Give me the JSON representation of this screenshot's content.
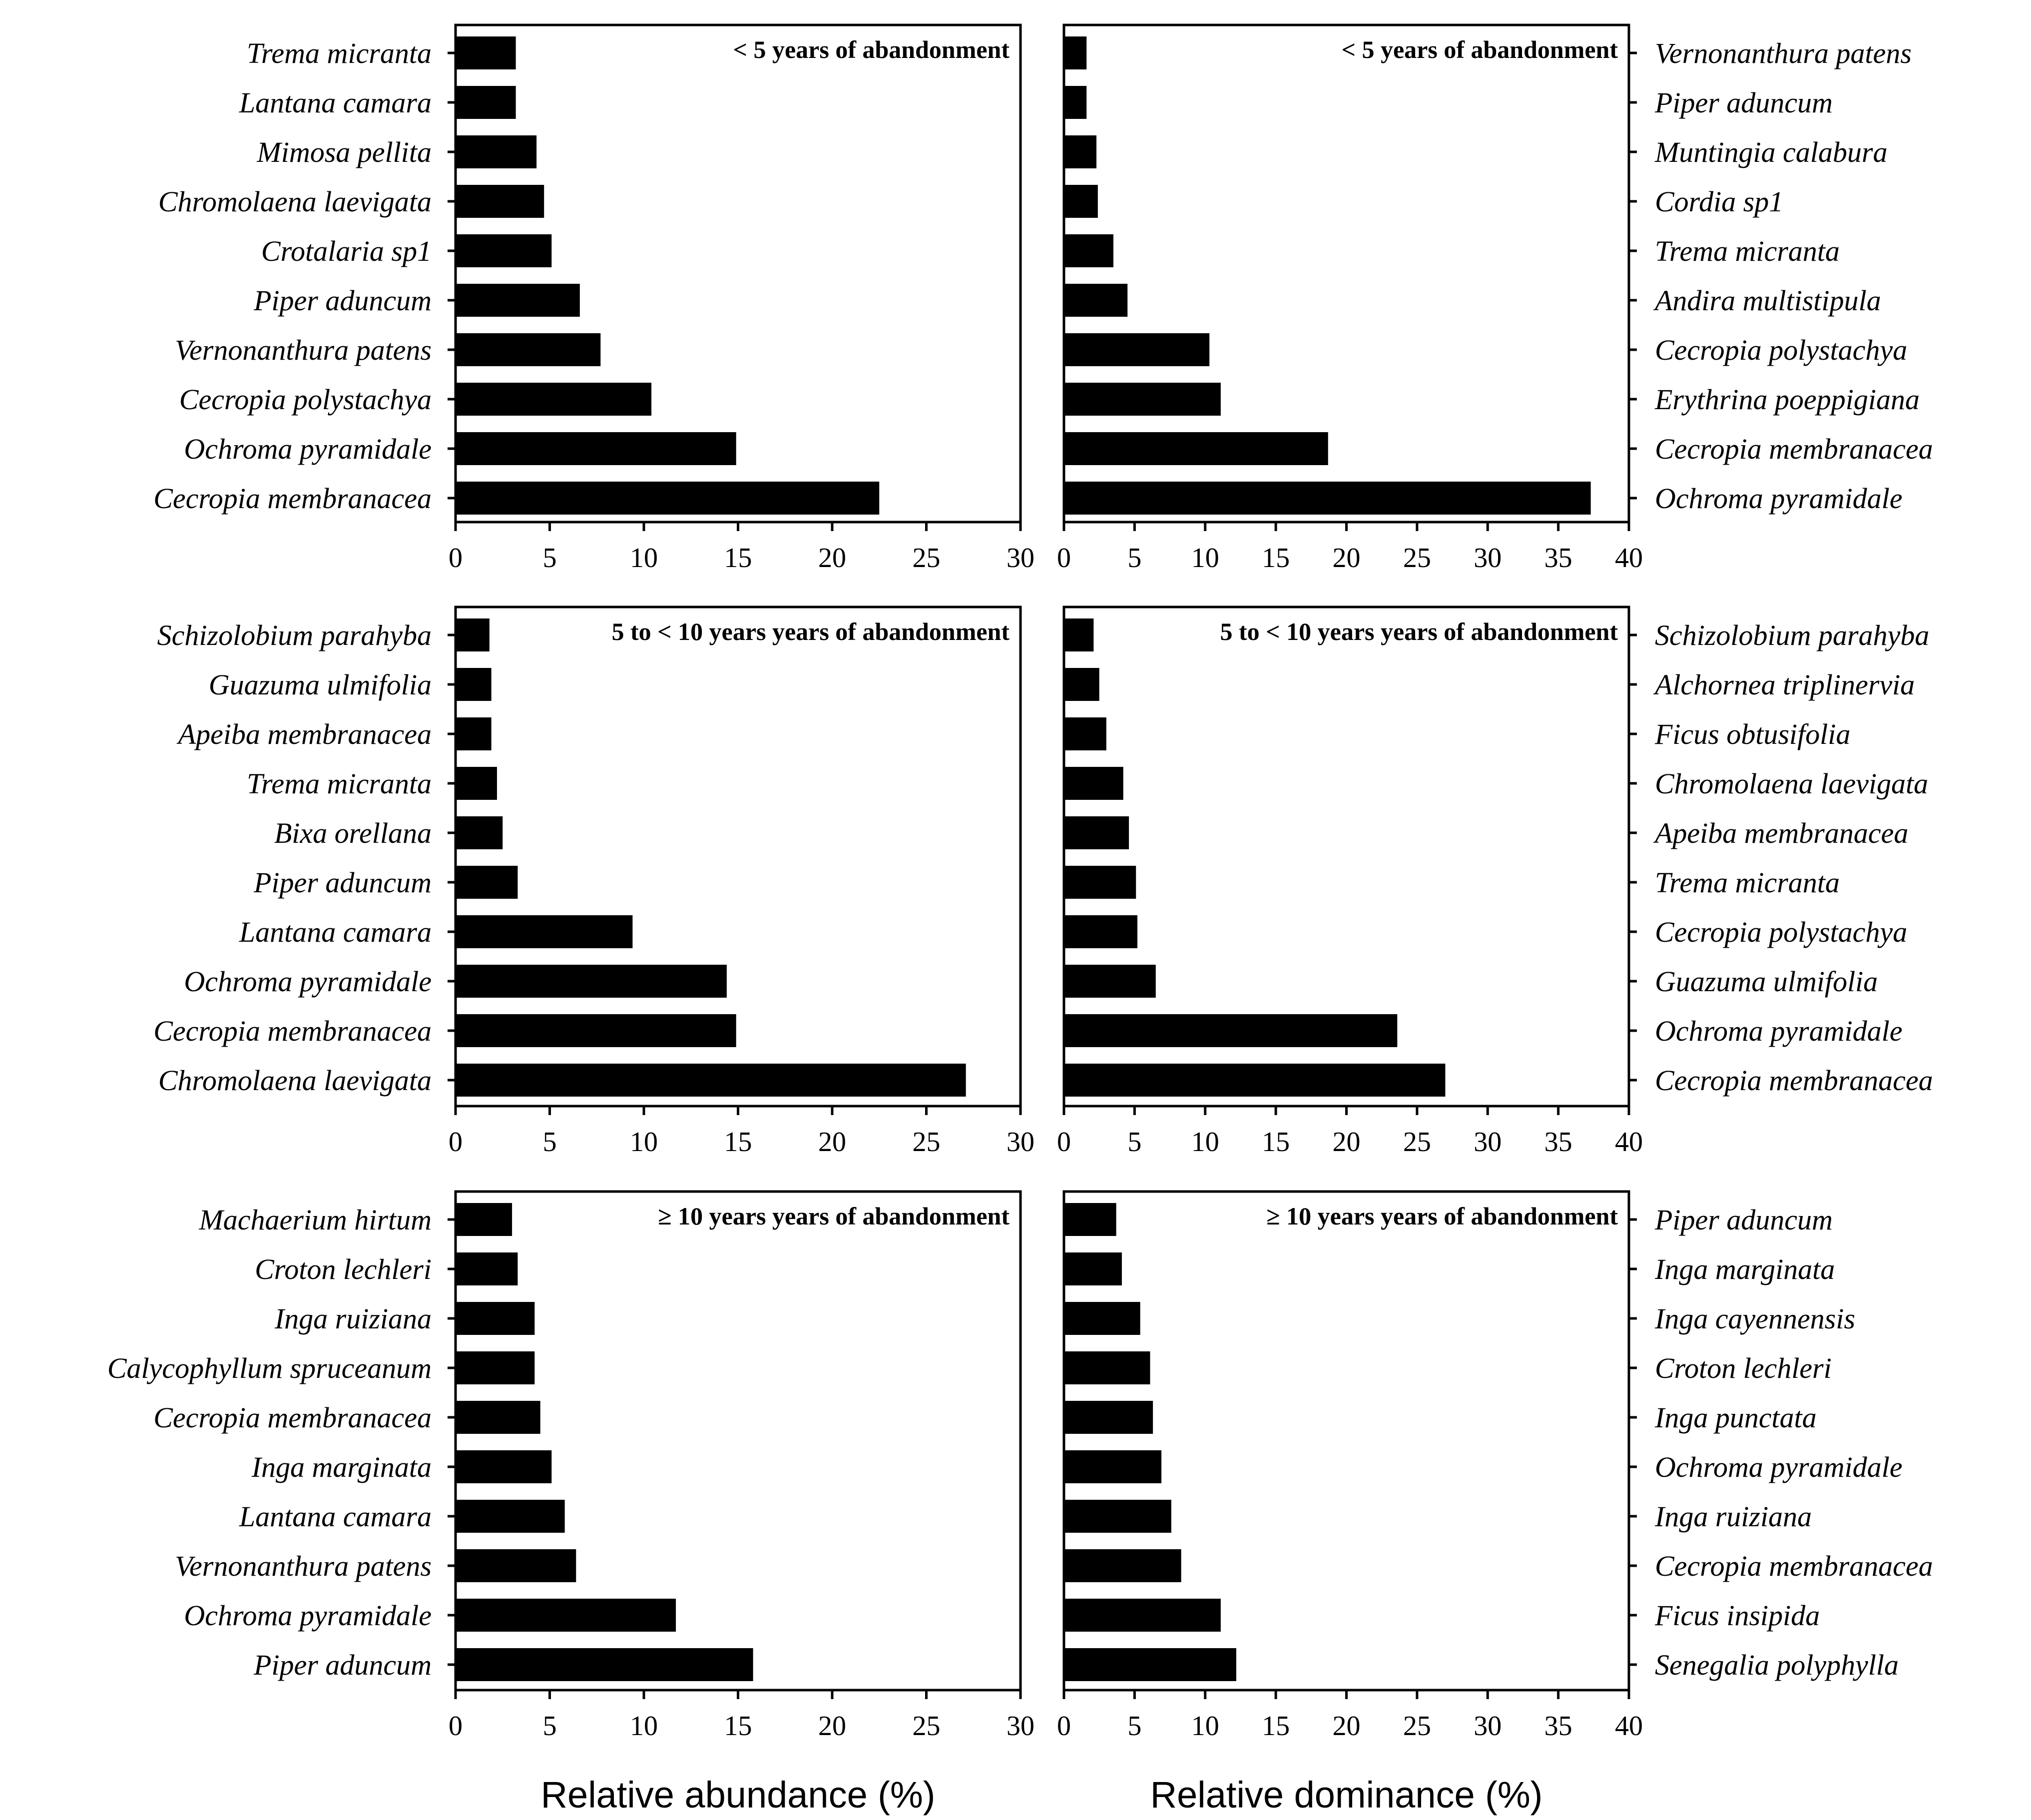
{
  "chart_data": [
    {
      "type": "bar",
      "orientation": "horizontal",
      "panel": "top-left",
      "title": "< 5 years of abandonment",
      "categories": [
        "Trema micranta",
        "Lantana camara",
        "Mimosa pellita",
        "Chromolaena laevigata",
        "Crotalaria sp1",
        "Piper aduncum",
        "Vernonanthura patens",
        "Cecropia polystachya",
        "Ochroma pyramidale",
        "Cecropia membranacea"
      ],
      "values": [
        3.2,
        3.2,
        4.3,
        4.7,
        5.1,
        6.6,
        7.7,
        10.4,
        14.9,
        22.5
      ],
      "xlim": [
        0,
        30
      ],
      "xticks": [
        0,
        5,
        10,
        15,
        20,
        25,
        30
      ],
      "label_side": "left",
      "xlabel": ""
    },
    {
      "type": "bar",
      "orientation": "horizontal",
      "panel": "top-right",
      "title": "< 5 years of abandonment",
      "categories": [
        "Vernonanthura patens",
        "Piper aduncum",
        "Muntingia calabura",
        "Cordia sp1",
        "Trema micranta",
        "Andira multistipula",
        "Cecropia polystachya",
        "Erythrina poeppigiana",
        "Cecropia membranacea",
        "Ochroma pyramidale"
      ],
      "values": [
        1.6,
        1.6,
        2.3,
        2.4,
        3.5,
        4.5,
        10.3,
        11.1,
        18.7,
        37.3
      ],
      "xlim": [
        0,
        40
      ],
      "xticks": [
        0,
        5,
        10,
        15,
        20,
        25,
        30,
        35,
        40
      ],
      "label_side": "right",
      "xlabel": ""
    },
    {
      "type": "bar",
      "orientation": "horizontal",
      "panel": "middle-left",
      "title": "5 to < 10 years years of abandonment",
      "categories": [
        "Schizolobium parahyba",
        "Guazuma ulmifolia",
        "Apeiba membranacea",
        "Trema micranta",
        "Bixa orellana",
        "Piper aduncum",
        "Lantana camara",
        "Ochroma pyramidale",
        "Cecropia membranacea",
        "Chromolaena laevigata"
      ],
      "values": [
        1.8,
        1.9,
        1.9,
        2.2,
        2.5,
        3.3,
        9.4,
        14.4,
        14.9,
        27.1
      ],
      "xlim": [
        0,
        30
      ],
      "xticks": [
        0,
        5,
        10,
        15,
        20,
        25,
        30
      ],
      "label_side": "left",
      "xlabel": ""
    },
    {
      "type": "bar",
      "orientation": "horizontal",
      "panel": "middle-right",
      "title": "5 to < 10 years years of abandonment",
      "categories": [
        "Schizolobium parahyba",
        "Alchornea triplinervia",
        "Ficus obtusifolia",
        "Chromolaena laevigata",
        "Apeiba membranacea",
        "Trema micranta",
        "Cecropia polystachya",
        "Guazuma ulmifolia",
        "Ochroma pyramidale",
        "Cecropia membranacea"
      ],
      "values": [
        2.1,
        2.5,
        3.0,
        4.2,
        4.6,
        5.1,
        5.2,
        6.5,
        23.6,
        27.0
      ],
      "xlim": [
        0,
        40
      ],
      "xticks": [
        0,
        5,
        10,
        15,
        20,
        25,
        30,
        35,
        40
      ],
      "label_side": "right",
      "xlabel": ""
    },
    {
      "type": "bar",
      "orientation": "horizontal",
      "panel": "bottom-left",
      "title": "≥ 10 years years of abandonment",
      "categories": [
        "Machaerium hirtum",
        "Croton lechleri",
        "Inga ruiziana",
        "Calycophyllum spruceanum",
        "Cecropia membranacea",
        "Inga marginata",
        "Lantana camara",
        "Vernonanthura patens",
        "Ochroma pyramidale",
        "Piper aduncum"
      ],
      "values": [
        3.0,
        3.3,
        4.2,
        4.2,
        4.5,
        5.1,
        5.8,
        6.4,
        11.7,
        15.8
      ],
      "xlim": [
        0,
        30
      ],
      "xticks": [
        0,
        5,
        10,
        15,
        20,
        25,
        30
      ],
      "label_side": "left",
      "xlabel": "Relative abundance (%)"
    },
    {
      "type": "bar",
      "orientation": "horizontal",
      "panel": "bottom-right",
      "title": "≥ 10 years years of abandonment",
      "categories": [
        "Piper aduncum",
        "Inga marginata",
        "Inga cayennensis",
        "Croton lechleri",
        "Inga punctata",
        "Ochroma pyramidale",
        "Inga ruiziana",
        "Cecropia membranacea",
        "Ficus insipida",
        "Senegalia polyphylla"
      ],
      "values": [
        3.7,
        4.1,
        5.4,
        6.1,
        6.3,
        6.9,
        7.6,
        8.3,
        11.1,
        12.2
      ],
      "xlim": [
        0,
        40
      ],
      "xticks": [
        0,
        5,
        10,
        15,
        20,
        25,
        30,
        35,
        40
      ],
      "label_side": "right",
      "xlabel": "Relative dominance (%)"
    }
  ]
}
